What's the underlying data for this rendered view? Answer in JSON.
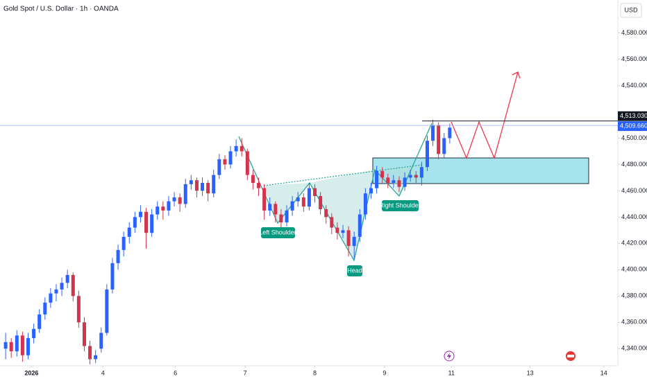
{
  "chart_data": {
    "type": "candlestick",
    "title": "Gold Spot / U.S. Dollar · 1h · OANDA",
    "currency": "USD",
    "up_color": "#2962ff",
    "down_color": "#d1344c",
    "ohlc": [
      [
        4340,
        4352,
        4332,
        4345
      ],
      [
        4345,
        4348,
        4333,
        4338
      ],
      [
        4338,
        4354,
        4334,
        4350
      ],
      [
        4350,
        4353,
        4330,
        4335
      ],
      [
        4335,
        4352,
        4332,
        4348
      ],
      [
        4348,
        4359,
        4344,
        4355
      ],
      [
        4355,
        4370,
        4352,
        4366
      ],
      [
        4366,
        4379,
        4362,
        4375
      ],
      [
        4375,
        4386,
        4371,
        4382
      ],
      [
        4382,
        4389,
        4376,
        4385
      ],
      [
        4385,
        4394,
        4380,
        4390
      ],
      [
        4390,
        4400,
        4386,
        4396
      ],
      [
        4396,
        4398,
        4376,
        4380
      ],
      [
        4380,
        4384,
        4356,
        4360
      ],
      [
        4360,
        4364,
        4338,
        4342
      ],
      [
        4342,
        4346,
        4328,
        4332
      ],
      [
        4332,
        4339,
        4329,
        4335
      ],
      [
        4340,
        4356,
        4337,
        4352
      ],
      [
        4352,
        4389,
        4350,
        4385
      ],
      [
        4385,
        4409,
        4382,
        4405
      ],
      [
        4405,
        4419,
        4400,
        4415
      ],
      [
        4415,
        4429,
        4410,
        4425
      ],
      [
        4425,
        4436,
        4420,
        4432
      ],
      [
        4432,
        4444,
        4428,
        4440
      ],
      [
        4440,
        4449,
        4436,
        4444
      ],
      [
        4444,
        4447,
        4416,
        4428
      ],
      [
        4428,
        4446,
        4425,
        4442
      ],
      [
        4442,
        4452,
        4438,
        4448
      ],
      [
        4448,
        4452,
        4438,
        4445
      ],
      [
        4445,
        4456,
        4441,
        4452
      ],
      [
        4452,
        4459,
        4448,
        4455
      ],
      [
        4455,
        4458,
        4444,
        4450
      ],
      [
        4450,
        4469,
        4447,
        4465
      ],
      [
        4465,
        4472,
        4461,
        4468
      ],
      [
        4468,
        4470,
        4455,
        4460
      ],
      [
        4460,
        4470,
        4456,
        4466
      ],
      [
        4466,
        4468,
        4452,
        4458
      ],
      [
        4458,
        4476,
        4455,
        4472
      ],
      [
        4472,
        4488,
        4469,
        4484
      ],
      [
        4484,
        4487,
        4476,
        4480
      ],
      [
        4480,
        4494,
        4477,
        4490
      ],
      [
        4490,
        4499,
        4486,
        4494
      ],
      [
        4494,
        4500,
        4486,
        4490
      ],
      [
        4490,
        4492,
        4468,
        4472
      ],
      [
        4472,
        4476,
        4461,
        4466
      ],
      [
        4466,
        4470,
        4456,
        4462
      ],
      [
        4462,
        4465,
        4438,
        4445
      ],
      [
        4445,
        4455,
        4441,
        4450
      ],
      [
        4450,
        4452,
        4436,
        4442
      ],
      [
        4442,
        4446,
        4432,
        4436
      ],
      [
        4436,
        4449,
        4433,
        4445
      ],
      [
        4445,
        4456,
        4441,
        4452
      ],
      [
        4452,
        4459,
        4448,
        4455
      ],
      [
        4455,
        4458,
        4444,
        4448
      ],
      [
        4448,
        4466,
        4445,
        4462
      ],
      [
        4462,
        4465,
        4451,
        4456
      ],
      [
        4456,
        4459,
        4442,
        4446
      ],
      [
        4446,
        4449,
        4435,
        4440
      ],
      [
        4440,
        4443,
        4427,
        4432
      ],
      [
        4432,
        4436,
        4423,
        4428
      ],
      [
        4428,
        4434,
        4424,
        4430
      ],
      [
        4430,
        4433,
        4410,
        4418
      ],
      [
        4418,
        4429,
        4408,
        4425
      ],
      [
        4425,
        4446,
        4421,
        4442
      ],
      [
        4442,
        4462,
        4438,
        4458
      ],
      [
        4458,
        4466,
        4454,
        4462
      ],
      [
        4462,
        4479,
        4458,
        4475
      ],
      [
        4475,
        4478,
        4466,
        4470
      ],
      [
        4470,
        4473,
        4462,
        4466
      ],
      [
        4466,
        4472,
        4462,
        4468
      ],
      [
        4468,
        4471,
        4459,
        4463
      ],
      [
        4463,
        4474,
        4460,
        4470
      ],
      [
        4470,
        4476,
        4467,
        4472
      ],
      [
        4472,
        4475,
        4466,
        4470
      ],
      [
        4470,
        4482,
        4464,
        4478
      ],
      [
        4478,
        4502,
        4475,
        4498
      ],
      [
        4498,
        4514,
        4494,
        4510
      ],
      [
        4510,
        4512,
        4484,
        4488
      ],
      [
        4488,
        4504,
        4485,
        4500
      ],
      [
        4500,
        4511,
        4496,
        4508
      ]
    ],
    "xlim": [
      -1,
      108.9
    ],
    "xticks": [
      {
        "value": 4.6,
        "label": "2026"
      },
      {
        "value": 17.3,
        "label": "4"
      },
      {
        "value": 30.2,
        "label": "6"
      },
      {
        "value": 42.6,
        "label": "7"
      },
      {
        "value": 55,
        "label": "8"
      },
      {
        "value": 67.4,
        "label": "9"
      },
      {
        "value": 79.3,
        "label": "11"
      },
      {
        "value": 93.3,
        "label": "13"
      },
      {
        "value": 106.4,
        "label": "14"
      }
    ],
    "ylim": [
      4327,
      4605
    ],
    "yticks": [
      {
        "value": 4340,
        "label": "4,340.000"
      },
      {
        "value": 4360,
        "label": "4,360.000"
      },
      {
        "value": 4380,
        "label": "4,380.000"
      },
      {
        "value": 4400,
        "label": "4,400.000"
      },
      {
        "value": 4420,
        "label": "4,420.000"
      },
      {
        "value": 4440,
        "label": "4,440.000"
      },
      {
        "value": 4460,
        "label": "4,460.000"
      },
      {
        "value": 4480,
        "label": "4,480.000"
      },
      {
        "value": 4500,
        "label": "4,500.000"
      },
      {
        "value": 4540,
        "label": "4,540.000"
      },
      {
        "value": 4560,
        "label": "4,560.000"
      },
      {
        "value": 4580,
        "label": "4,580.000"
      }
    ],
    "price_tags": [
      {
        "value": 4513.03,
        "label": "4,513.030",
        "color": "#131722"
      },
      {
        "value": 4509.66,
        "label": "4,509.660",
        "color": "#2962ff"
      }
    ],
    "annotations": [
      "Left Shoulder",
      "Head",
      "Right Shoulder"
    ],
    "grid": false
  }
}
